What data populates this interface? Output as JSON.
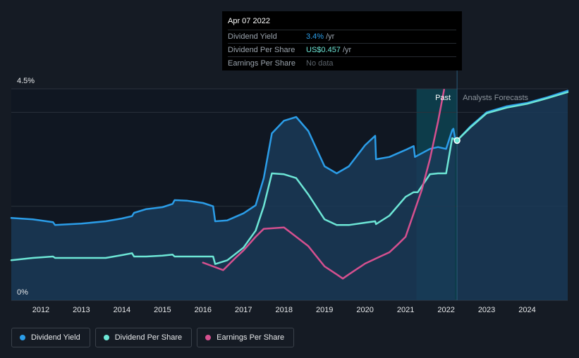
{
  "tooltip": {
    "date": "Apr 07 2022",
    "rows": [
      {
        "name": "Dividend Yield",
        "value": "3.4%",
        "unit": "/yr"
      },
      {
        "name": "Dividend Per Share",
        "value": "US$0.457",
        "unit": "/yr"
      },
      {
        "name": "Earnings Per Share",
        "value": "No data"
      }
    ]
  },
  "legend": [
    {
      "label": "Dividend Yield",
      "color": "#2b9de8"
    },
    {
      "label": "Dividend Per Share",
      "color": "#6de6d6"
    },
    {
      "label": "Earnings Per Share",
      "color": "#d5508f"
    }
  ],
  "chart_data": {
    "type": "line",
    "y_axis_labels": [
      "4.5%",
      "0%"
    ],
    "ylim": [
      0,
      4.5
    ],
    "x_ticks": [
      "2012",
      "2013",
      "2014",
      "2015",
      "2016",
      "2017",
      "2018",
      "2019",
      "2020",
      "2021",
      "2022",
      "2023",
      "2024"
    ],
    "xlim": [
      2011.27,
      2025.0
    ],
    "section_labels": {
      "past": "Past",
      "forecast": "Analysts Forecasts"
    },
    "forecast_start": 2022.27,
    "past_band_start": 2021.27,
    "series": [
      {
        "name": "Dividend Yield",
        "color": "#2b9de8",
        "points": [
          [
            2011.27,
            1.75
          ],
          [
            2011.8,
            1.72
          ],
          [
            2012.3,
            1.66
          ],
          [
            2012.35,
            1.6
          ],
          [
            2013.0,
            1.63
          ],
          [
            2013.6,
            1.68
          ],
          [
            2014.0,
            1.74
          ],
          [
            2014.25,
            1.79
          ],
          [
            2014.3,
            1.86
          ],
          [
            2014.6,
            1.94
          ],
          [
            2015.0,
            1.98
          ],
          [
            2015.25,
            2.05
          ],
          [
            2015.3,
            2.13
          ],
          [
            2015.6,
            2.12
          ],
          [
            2016.0,
            2.07
          ],
          [
            2016.25,
            2.0
          ],
          [
            2016.3,
            1.68
          ],
          [
            2016.6,
            1.7
          ],
          [
            2017.0,
            1.85
          ],
          [
            2017.3,
            2.02
          ],
          [
            2017.5,
            2.6
          ],
          [
            2017.7,
            3.55
          ],
          [
            2018.0,
            3.82
          ],
          [
            2018.3,
            3.9
          ],
          [
            2018.6,
            3.6
          ],
          [
            2019.0,
            2.85
          ],
          [
            2019.3,
            2.7
          ],
          [
            2019.6,
            2.85
          ],
          [
            2020.0,
            3.3
          ],
          [
            2020.25,
            3.5
          ],
          [
            2020.27,
            3.0
          ],
          [
            2020.6,
            3.05
          ],
          [
            2021.0,
            3.2
          ],
          [
            2021.2,
            3.28
          ],
          [
            2021.23,
            3.05
          ],
          [
            2021.6,
            3.22
          ],
          [
            2021.8,
            3.26
          ],
          [
            2022.0,
            3.22
          ],
          [
            2022.15,
            3.62
          ],
          [
            2022.18,
            3.65
          ],
          [
            2022.22,
            3.45
          ]
        ]
      },
      {
        "name": "Dividend Per Share",
        "color": "#6de6d6",
        "points": [
          [
            2011.27,
            0.85
          ],
          [
            2011.8,
            0.9
          ],
          [
            2012.3,
            0.93
          ],
          [
            2012.35,
            0.9
          ],
          [
            2013.0,
            0.9
          ],
          [
            2013.6,
            0.9
          ],
          [
            2014.0,
            0.96
          ],
          [
            2014.25,
            1.0
          ],
          [
            2014.3,
            0.93
          ],
          [
            2014.6,
            0.93
          ],
          [
            2015.0,
            0.95
          ],
          [
            2015.25,
            0.97
          ],
          [
            2015.3,
            0.93
          ],
          [
            2015.6,
            0.93
          ],
          [
            2016.0,
            0.93
          ],
          [
            2016.25,
            0.93
          ],
          [
            2016.3,
            0.77
          ],
          [
            2016.6,
            0.85
          ],
          [
            2017.0,
            1.12
          ],
          [
            2017.3,
            1.48
          ],
          [
            2017.5,
            2.0
          ],
          [
            2017.7,
            2.7
          ],
          [
            2018.0,
            2.68
          ],
          [
            2018.3,
            2.6
          ],
          [
            2018.6,
            2.25
          ],
          [
            2019.0,
            1.72
          ],
          [
            2019.3,
            1.6
          ],
          [
            2019.6,
            1.6
          ],
          [
            2020.0,
            1.65
          ],
          [
            2020.25,
            1.68
          ],
          [
            2020.27,
            1.62
          ],
          [
            2020.6,
            1.8
          ],
          [
            2021.0,
            2.2
          ],
          [
            2021.2,
            2.3
          ],
          [
            2021.3,
            2.3
          ],
          [
            2021.6,
            2.68
          ],
          [
            2021.8,
            2.7
          ],
          [
            2022.0,
            2.7
          ],
          [
            2022.15,
            3.45
          ],
          [
            2022.22,
            3.42
          ],
          [
            2022.27,
            3.38
          ]
        ]
      },
      {
        "name": "Earnings Per Share",
        "color": "#d5508f",
        "points": [
          [
            2016.0,
            0.8
          ],
          [
            2016.25,
            0.72
          ],
          [
            2016.5,
            0.64
          ],
          [
            2016.8,
            0.9
          ],
          [
            2017.0,
            1.06
          ],
          [
            2017.3,
            1.35
          ],
          [
            2017.5,
            1.52
          ],
          [
            2018.0,
            1.55
          ],
          [
            2018.3,
            1.35
          ],
          [
            2018.6,
            1.15
          ],
          [
            2019.0,
            0.72
          ],
          [
            2019.3,
            0.55
          ],
          [
            2019.45,
            0.46
          ],
          [
            2019.6,
            0.55
          ],
          [
            2020.0,
            0.78
          ],
          [
            2020.4,
            0.94
          ],
          [
            2020.6,
            1.02
          ],
          [
            2020.8,
            1.18
          ],
          [
            2021.0,
            1.35
          ],
          [
            2021.2,
            1.85
          ],
          [
            2021.4,
            2.35
          ],
          [
            2021.6,
            3.0
          ],
          [
            2021.8,
            3.8
          ],
          [
            2021.95,
            4.48
          ]
        ]
      },
      {
        "name": "Dividend Yield (forecast)",
        "color": "#2b9de8",
        "points": [
          [
            2022.27,
            3.4
          ],
          [
            2022.6,
            3.7
          ],
          [
            2023.0,
            4.0
          ],
          [
            2023.5,
            4.13
          ],
          [
            2024.0,
            4.2
          ],
          [
            2024.5,
            4.32
          ],
          [
            2025.0,
            4.46
          ]
        ]
      },
      {
        "name": "Dividend Per Share (forecast)",
        "color": "#6de6d6",
        "points": [
          [
            2022.27,
            3.4
          ],
          [
            2022.6,
            3.68
          ],
          [
            2023.0,
            3.98
          ],
          [
            2023.5,
            4.1
          ],
          [
            2024.0,
            4.18
          ],
          [
            2024.5,
            4.3
          ],
          [
            2025.0,
            4.43
          ]
        ]
      }
    ],
    "marker": {
      "x": 2022.27,
      "y": 3.4
    }
  },
  "colors": {
    "background": "#151b24",
    "plot_bg": "#101722",
    "past_band": "#0d3c4a",
    "grid": "#2a323c",
    "yield_fill": "#1a3a57"
  }
}
